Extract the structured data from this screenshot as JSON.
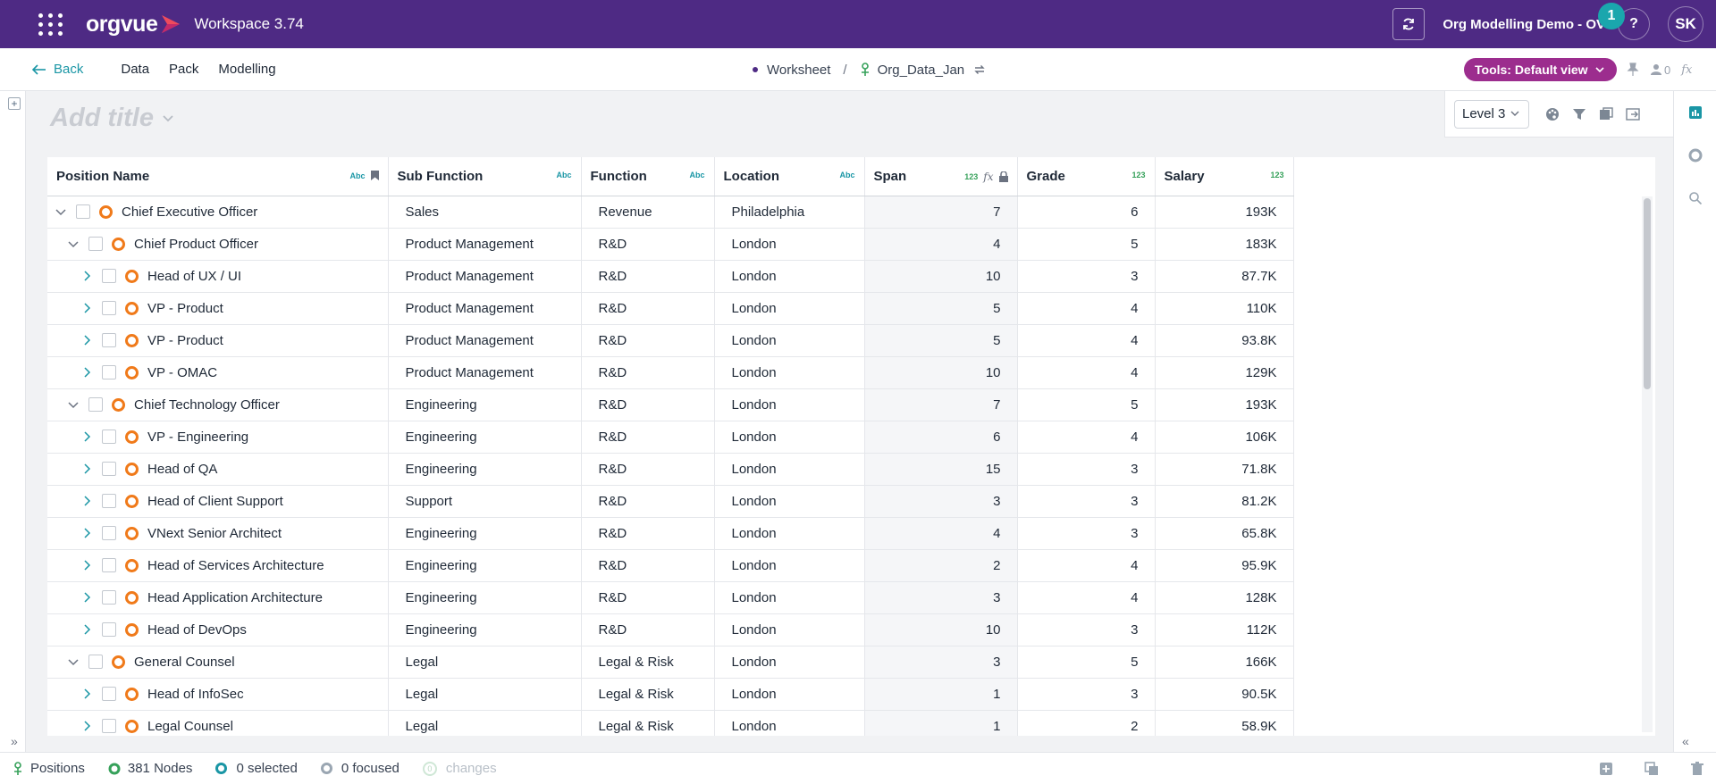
{
  "topbar": {
    "logo_text": "orgvue",
    "workspace": "Workspace 3.74",
    "org_name": "Org Modelling Demo - OV",
    "help_label": "?",
    "notification_count": "1",
    "avatar_initials": "SK",
    "colors": {
      "bar": "#4e2a84",
      "badge": "#1aa6ad",
      "logo_accent": "#ee4b5c"
    }
  },
  "nav": {
    "back_label": "Back",
    "items": [
      "Data",
      "Pack",
      "Modelling"
    ],
    "breadcrumb": {
      "worksheet": "Worksheet",
      "separator": "/",
      "dataset": "Org_Data_Jan"
    },
    "tools_label": "Tools: Default view",
    "user_count": "0",
    "fx_label": "fx"
  },
  "title": {
    "placeholder": "Add title"
  },
  "view_toolbar": {
    "level": "Level 3"
  },
  "table": {
    "columns": [
      {
        "label": "Position Name",
        "type": "Abc"
      },
      {
        "label": "Sub Function",
        "type": "Abc"
      },
      {
        "label": "Function",
        "type": "Abc"
      },
      {
        "label": "Location",
        "type": "Abc"
      },
      {
        "label": "Span",
        "type": "123",
        "fx": "fx"
      },
      {
        "label": "Grade",
        "type": "123"
      },
      {
        "label": "Salary",
        "type": "123"
      }
    ],
    "rows": [
      {
        "depth": 0,
        "expanded": true,
        "name": "Chief Executive Officer",
        "sub": "Sales",
        "func": "Revenue",
        "loc": "Philadelphia",
        "span": "7",
        "grade": "6",
        "salary": "193K"
      },
      {
        "depth": 1,
        "expanded": true,
        "name": "Chief Product Officer",
        "sub": "Product Management",
        "func": "R&D",
        "loc": "London",
        "span": "4",
        "grade": "5",
        "salary": "183K"
      },
      {
        "depth": 2,
        "expanded": false,
        "name": "Head of UX / UI",
        "sub": "Product Management",
        "func": "R&D",
        "loc": "London",
        "span": "10",
        "grade": "3",
        "salary": "87.7K"
      },
      {
        "depth": 2,
        "expanded": false,
        "name": "VP - Product",
        "sub": "Product Management",
        "func": "R&D",
        "loc": "London",
        "span": "5",
        "grade": "4",
        "salary": "110K"
      },
      {
        "depth": 2,
        "expanded": false,
        "name": "VP - Product",
        "sub": "Product Management",
        "func": "R&D",
        "loc": "London",
        "span": "5",
        "grade": "4",
        "salary": "93.8K"
      },
      {
        "depth": 2,
        "expanded": false,
        "name": "VP - OMAC",
        "sub": "Product Management",
        "func": "R&D",
        "loc": "London",
        "span": "10",
        "grade": "4",
        "salary": "129K"
      },
      {
        "depth": 1,
        "expanded": true,
        "name": "Chief Technology Officer",
        "sub": "Engineering",
        "func": "R&D",
        "loc": "London",
        "span": "7",
        "grade": "5",
        "salary": "193K"
      },
      {
        "depth": 2,
        "expanded": false,
        "name": "VP - Engineering",
        "sub": "Engineering",
        "func": "R&D",
        "loc": "London",
        "span": "6",
        "grade": "4",
        "salary": "106K"
      },
      {
        "depth": 2,
        "expanded": false,
        "name": "Head of QA",
        "sub": "Engineering",
        "func": "R&D",
        "loc": "London",
        "span": "15",
        "grade": "3",
        "salary": "71.8K"
      },
      {
        "depth": 2,
        "expanded": false,
        "name": "Head of Client Support",
        "sub": "Support",
        "func": "R&D",
        "loc": "London",
        "span": "3",
        "grade": "3",
        "salary": "81.2K"
      },
      {
        "depth": 2,
        "expanded": false,
        "name": "VNext Senior Architect",
        "sub": "Engineering",
        "func": "R&D",
        "loc": "London",
        "span": "4",
        "grade": "3",
        "salary": "65.8K"
      },
      {
        "depth": 2,
        "expanded": false,
        "name": "Head of Services Architecture",
        "sub": "Engineering",
        "func": "R&D",
        "loc": "London",
        "span": "2",
        "grade": "4",
        "salary": "95.9K"
      },
      {
        "depth": 2,
        "expanded": false,
        "name": "Head Application Architecture",
        "sub": "Engineering",
        "func": "R&D",
        "loc": "London",
        "span": "3",
        "grade": "4",
        "salary": "128K"
      },
      {
        "depth": 2,
        "expanded": false,
        "name": "Head of DevOps",
        "sub": "Engineering",
        "func": "R&D",
        "loc": "London",
        "span": "10",
        "grade": "3",
        "salary": "112K"
      },
      {
        "depth": 1,
        "expanded": true,
        "name": "General Counsel",
        "sub": "Legal",
        "func": "Legal & Risk",
        "loc": "London",
        "span": "3",
        "grade": "5",
        "salary": "166K"
      },
      {
        "depth": 2,
        "expanded": false,
        "name": "Head of InfoSec",
        "sub": "Legal",
        "func": "Legal & Risk",
        "loc": "London",
        "span": "1",
        "grade": "3",
        "salary": "90.5K"
      },
      {
        "depth": 2,
        "expanded": false,
        "name": "Legal Counsel",
        "sub": "Legal",
        "func": "Legal & Risk",
        "loc": "London",
        "span": "1",
        "grade": "2",
        "salary": "58.9K"
      }
    ]
  },
  "status": {
    "dataset": "Positions",
    "nodes": "381 Nodes",
    "selected": "0 selected",
    "focused": "0 focused",
    "changes_count": "0",
    "changes": "changes"
  }
}
